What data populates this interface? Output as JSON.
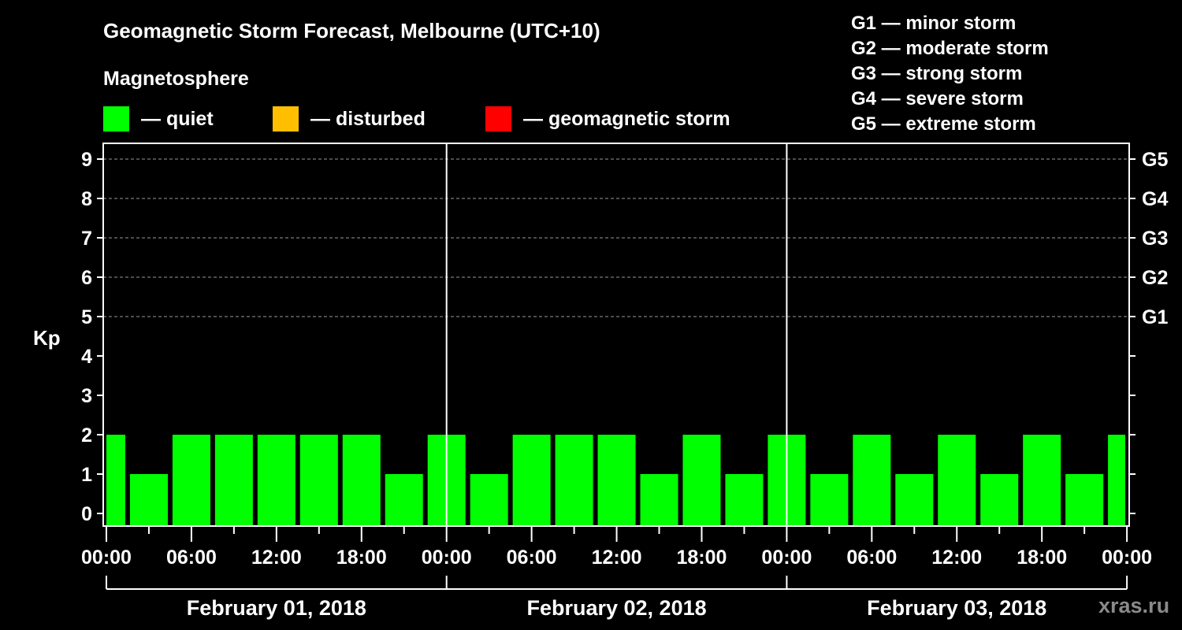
{
  "title": "Geomagnetic Storm Forecast, Melbourne (UTC+10)",
  "magnetosphere": {
    "title": "Magnetosphere",
    "legend": [
      {
        "label": "— quiet",
        "color": "#00ff00"
      },
      {
        "label": "— disturbed",
        "color": "#ffbf00"
      },
      {
        "label": "— geomagnetic storm",
        "color": "#ff0000"
      }
    ]
  },
  "storm_scale": [
    {
      "label": "G1 — minor storm"
    },
    {
      "label": "G2 — moderate storm"
    },
    {
      "label": "G3 — strong storm"
    },
    {
      "label": "G4 — severe storm"
    },
    {
      "label": "G5 — extreme storm"
    }
  ],
  "watermark": "xras.ru",
  "chart_data": {
    "type": "bar",
    "title": "Geomagnetic Storm Forecast, Melbourne (UTC+10)",
    "ylabel": "Kp",
    "xlabel": "",
    "ylim": [
      0,
      9
    ],
    "yticks": [
      0,
      1,
      2,
      3,
      4,
      5,
      6,
      7,
      8,
      9
    ],
    "right_axis_labels": [
      {
        "kp": 5,
        "label": "G1"
      },
      {
        "kp": 6,
        "label": "G2"
      },
      {
        "kp": 7,
        "label": "G3"
      },
      {
        "kp": 8,
        "label": "G4"
      },
      {
        "kp": 9,
        "label": "G5"
      }
    ],
    "grid": {
      "horizontal_dashed_at": [
        5,
        6,
        7,
        8,
        9
      ]
    },
    "x_tick_labels": [
      "00:00",
      "06:00",
      "12:00",
      "18:00",
      "00:00",
      "06:00",
      "12:00",
      "18:00",
      "00:00",
      "06:00",
      "12:00",
      "18:00",
      "00:00"
    ],
    "date_labels": [
      "February 01, 2018",
      "February 02, 2018",
      "February 03, 2018"
    ],
    "bar_interval_hours": 3,
    "categories": [
      "Feb 01 00:00",
      "Feb 01 03:00",
      "Feb 01 06:00",
      "Feb 01 09:00",
      "Feb 01 12:00",
      "Feb 01 15:00",
      "Feb 01 18:00",
      "Feb 01 21:00",
      "Feb 02 00:00",
      "Feb 02 03:00",
      "Feb 02 06:00",
      "Feb 02 09:00",
      "Feb 02 12:00",
      "Feb 02 15:00",
      "Feb 02 18:00",
      "Feb 02 21:00",
      "Feb 03 00:00",
      "Feb 03 03:00",
      "Feb 03 06:00",
      "Feb 03 09:00",
      "Feb 03 12:00",
      "Feb 03 15:00",
      "Feb 03 18:00",
      "Feb 03 21:00",
      "Feb 04 00:00"
    ],
    "values": [
      2,
      1,
      2,
      2,
      2,
      2,
      2,
      1,
      2,
      1,
      2,
      2,
      2,
      1,
      2,
      1,
      2,
      1,
      2,
      1,
      2,
      1,
      2,
      1,
      2
    ],
    "status": [
      "quiet",
      "quiet",
      "quiet",
      "quiet",
      "quiet",
      "quiet",
      "quiet",
      "quiet",
      "quiet",
      "quiet",
      "quiet",
      "quiet",
      "quiet",
      "quiet",
      "quiet",
      "quiet",
      "quiet",
      "quiet",
      "quiet",
      "quiet",
      "quiet",
      "quiet",
      "quiet",
      "quiet",
      "quiet"
    ],
    "colors": {
      "quiet": "#00ff00",
      "disturbed": "#ffbf00",
      "storm": "#ff0000"
    }
  }
}
